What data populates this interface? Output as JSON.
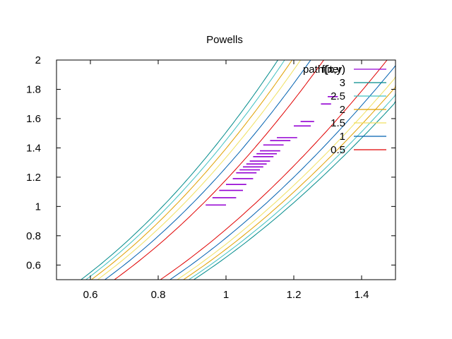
{
  "chart_data": {
    "type": "line",
    "title": "Powells",
    "xlabel": "",
    "ylabel": "",
    "xlim": [
      0.5,
      1.5
    ],
    "ylim": [
      0.5,
      2
    ],
    "xticks": [
      0.6,
      0.8,
      1,
      1.2,
      1.4
    ],
    "yticks": [
      0.6,
      0.8,
      1,
      1.2,
      1.4,
      1.6,
      1.8,
      2
    ],
    "tick_labels_x": [
      "0.6",
      "0.8",
      "1",
      "1.2",
      "1.4"
    ],
    "tick_labels_y": [
      "0.6",
      "0.8",
      "1",
      "1.2",
      "1.4",
      "1.6",
      "1.8",
      "2"
    ],
    "legend_position": "top-right",
    "grid": false,
    "series": [
      {
        "name": "path(iter)",
        "kind": "path",
        "color": "#9400d3"
      },
      {
        "name": "f(x,y)",
        "kind": "contour-label",
        "color": "#9400d3"
      },
      {
        "name": "3",
        "kind": "contour",
        "level": 3,
        "color": "#008b8b"
      },
      {
        "name": "2.5",
        "kind": "contour",
        "level": 2.5,
        "color": "#40c0c0"
      },
      {
        "name": "2",
        "kind": "contour",
        "level": 2,
        "color": "#e0a000"
      },
      {
        "name": "1.5",
        "kind": "contour",
        "level": 1.5,
        "color": "#f0e060"
      },
      {
        "name": "1",
        "kind": "contour",
        "level": 1,
        "color": "#0060b0"
      },
      {
        "name": "0.5",
        "kind": "contour",
        "level": 0.5,
        "color": "#e00000"
      }
    ],
    "path": {
      "x": [
        0.94,
        1.0,
        0.96,
        1.03,
        0.98,
        1.05,
        1.0,
        1.06,
        1.02,
        1.08,
        1.03,
        1.09,
        1.04,
        1.1,
        1.05,
        1.11,
        1.06,
        1.12,
        1.07,
        1.13,
        1.08,
        1.14,
        1.09,
        1.15,
        1.1,
        1.16,
        1.11,
        1.17,
        1.13,
        1.19,
        1.15,
        1.21,
        1.2,
        1.25,
        1.22,
        1.26,
        1.28,
        1.31,
        1.3,
        1.33
      ],
      "y": [
        1.01,
        1.01,
        1.06,
        1.06,
        1.11,
        1.11,
        1.15,
        1.15,
        1.19,
        1.19,
        1.23,
        1.23,
        1.25,
        1.25,
        1.27,
        1.27,
        1.29,
        1.29,
        1.31,
        1.31,
        1.34,
        1.34,
        1.36,
        1.36,
        1.38,
        1.38,
        1.42,
        1.42,
        1.45,
        1.45,
        1.47,
        1.47,
        1.55,
        1.55,
        1.58,
        1.58,
        1.7,
        1.7,
        1.75,
        1.75
      ]
    }
  }
}
